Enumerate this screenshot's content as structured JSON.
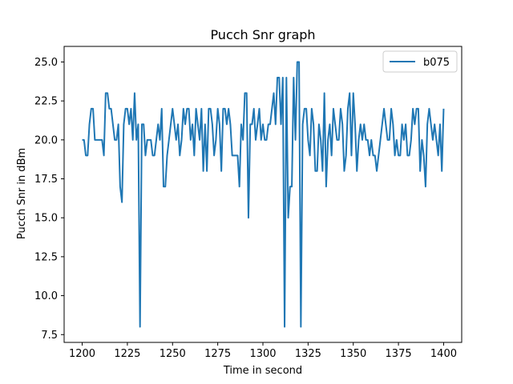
{
  "chart_data": {
    "type": "line",
    "title": "Pucch Snr graph",
    "xlabel": "Time in second",
    "ylabel": "Pucch Snr in dBm",
    "xlim": [
      1190,
      1410
    ],
    "ylim": [
      7,
      26
    ],
    "xticks": [
      1200,
      1225,
      1250,
      1275,
      1300,
      1325,
      1350,
      1375,
      1400
    ],
    "yticks": [
      7.5,
      10.0,
      12.5,
      15.0,
      17.5,
      20.0,
      22.5,
      25.0
    ],
    "grid": false,
    "legend": {
      "position": "top-right"
    },
    "series": [
      {
        "name": "b075",
        "color": "#1f77b4",
        "x": [
          1200,
          1201,
          1202,
          1203,
          1204,
          1205,
          1206,
          1207,
          1208,
          1209,
          1210,
          1211,
          1212,
          1213,
          1214,
          1215,
          1216,
          1217,
          1218,
          1219,
          1220,
          1221,
          1222,
          1223,
          1224,
          1225,
          1226,
          1227,
          1228,
          1229,
          1230,
          1231,
          1232,
          1233,
          1234,
          1235,
          1236,
          1237,
          1238,
          1239,
          1240,
          1241,
          1242,
          1243,
          1244,
          1245,
          1246,
          1247,
          1248,
          1249,
          1250,
          1251,
          1252,
          1253,
          1254,
          1255,
          1256,
          1257,
          1258,
          1259,
          1260,
          1261,
          1262,
          1263,
          1264,
          1265,
          1266,
          1267,
          1268,
          1269,
          1270,
          1271,
          1272,
          1273,
          1274,
          1275,
          1276,
          1277,
          1278,
          1279,
          1280,
          1281,
          1282,
          1283,
          1284,
          1285,
          1286,
          1287,
          1288,
          1289,
          1290,
          1291,
          1292,
          1293,
          1294,
          1295,
          1296,
          1297,
          1298,
          1299,
          1300,
          1301,
          1302,
          1303,
          1304,
          1305,
          1306,
          1307,
          1308,
          1309,
          1310,
          1311,
          1312,
          1313,
          1314,
          1315,
          1316,
          1317,
          1318,
          1319,
          1320,
          1321,
          1322,
          1323,
          1324,
          1325,
          1326,
          1327,
          1328,
          1329,
          1330,
          1331,
          1332,
          1333,
          1334,
          1335,
          1336,
          1337,
          1338,
          1339,
          1340,
          1341,
          1342,
          1343,
          1344,
          1345,
          1346,
          1347,
          1348,
          1349,
          1350,
          1351,
          1352,
          1353,
          1354,
          1355,
          1356,
          1357,
          1358,
          1359,
          1360,
          1361,
          1362,
          1363,
          1364,
          1365,
          1366,
          1367,
          1368,
          1369,
          1370,
          1371,
          1372,
          1373,
          1374,
          1375,
          1376,
          1377,
          1378,
          1379,
          1380,
          1381,
          1382,
          1383,
          1384,
          1385,
          1386,
          1387,
          1388,
          1389,
          1390,
          1391,
          1392,
          1393,
          1394,
          1395,
          1396,
          1397,
          1398,
          1399,
          1400
        ],
        "y": [
          20,
          20,
          19,
          19,
          21,
          22,
          22,
          20,
          20,
          20,
          20,
          20,
          19,
          23,
          23,
          22,
          22,
          21,
          20,
          20,
          21,
          17,
          16,
          21,
          22,
          22,
          21,
          22,
          20,
          23,
          20,
          21,
          8,
          21,
          21,
          19,
          20,
          20,
          20,
          19,
          19,
          20,
          21,
          20,
          22,
          17,
          17,
          19,
          20,
          21,
          22,
          21,
          20,
          21,
          19,
          20,
          22,
          21,
          22,
          22,
          20,
          21,
          19,
          22,
          21,
          20,
          22,
          18,
          21,
          18,
          22,
          22,
          21,
          19,
          20,
          22,
          21,
          18,
          22,
          22,
          21,
          22,
          21,
          19,
          19,
          19,
          19,
          17,
          21,
          20,
          23,
          23,
          15,
          21,
          21,
          22,
          20,
          21,
          22,
          20,
          21,
          20,
          20,
          21,
          21,
          22,
          23,
          21,
          24,
          24,
          21,
          24,
          8,
          24,
          15,
          17,
          17,
          24,
          20,
          25,
          25,
          8,
          21,
          22,
          22,
          20,
          19,
          22,
          21,
          18,
          18,
          21,
          20,
          18,
          23,
          17,
          20,
          21,
          19,
          22,
          21,
          20,
          20,
          22,
          21,
          18,
          19,
          22,
          23,
          19,
          23,
          21,
          18,
          20,
          21,
          20,
          21,
          20,
          20,
          19,
          20,
          19,
          19,
          18,
          19,
          20,
          21,
          22,
          21,
          20,
          20,
          22,
          21,
          19,
          20,
          19,
          19,
          21,
          20,
          21,
          19,
          19,
          20,
          22,
          21,
          22,
          22,
          18,
          20,
          19,
          17,
          21,
          22,
          21,
          20,
          21,
          20,
          19,
          21,
          18,
          22
        ]
      }
    ]
  }
}
